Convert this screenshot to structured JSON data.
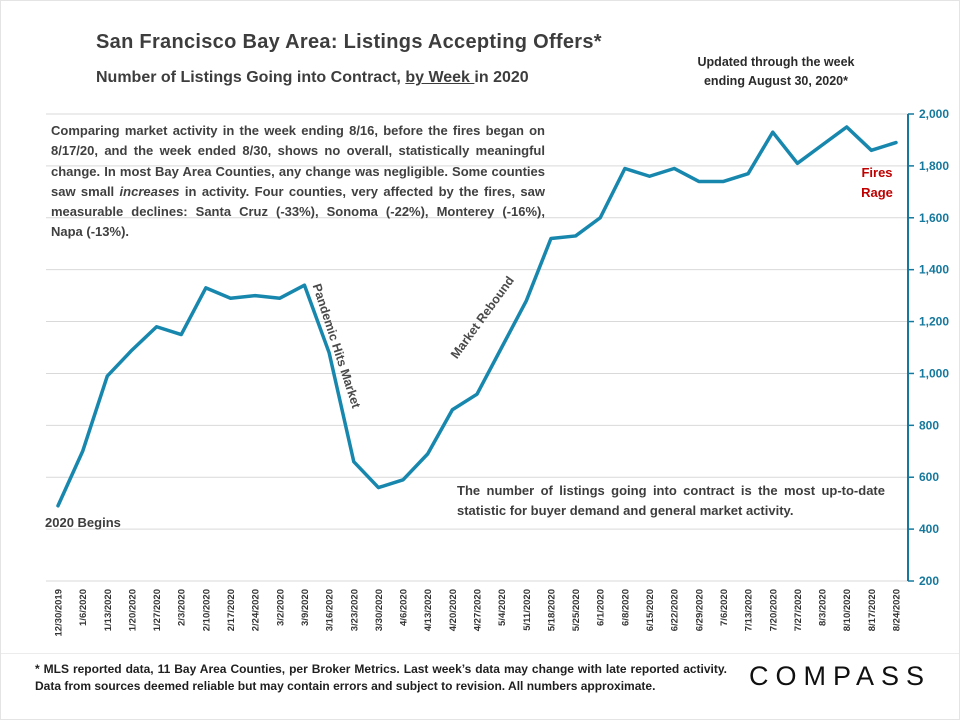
{
  "header": {
    "title": "San Francisco Bay Area: Listings Accepting Offers*",
    "subtitle_prefix": "Number of Listings Going into Contract, ",
    "subtitle_underlined": "by Week ",
    "subtitle_suffix": "in 2020",
    "updated_note_1": "Updated through the week",
    "updated_note_2": "ending August 30, 2020*"
  },
  "annotations": {
    "commentary_1": "Comparing market activity in the week ending 8/16, before the fires began on 8/17/20, and the week ended 8/30, shows no overall, statistically meaningful change. In most Bay Area Counties, any change was negligible. Some counties saw small ",
    "commentary_italic": "increases",
    "commentary_2": " in activity. Four counties, very affected by the fires, saw measurable declines: Santa Cruz (-33%), Sonoma (-22%), Monterey (-16%), Napa (-13%).",
    "pandemic": "Pandemic Hits Market",
    "rebound": "Market Rebound",
    "fires_1": "Fires",
    "fires_2": "Rage",
    "begins": "2020 Begins",
    "demand_note": "The number of listings going into contract is the most up-to-date statistic for buyer demand and general market activity."
  },
  "footer": {
    "disclaimer": "* MLS reported data, 11 Bay Area Counties, per Broker Metrics. Last week’s data may change with late reported activity. Data from sources deemed reliable but may contain errors and subject to revision. All numbers approximate.",
    "logo": "COMPASS"
  },
  "chart_data": {
    "type": "line",
    "title": "San Francisco Bay Area: Listings Accepting Offers*",
    "subtitle": "Number of Listings Going into Contract, by Week in 2020",
    "x": [
      "12/30/2019",
      "1/6/2020",
      "1/13/2020",
      "1/20/2020",
      "1/27/2020",
      "2/3/2020",
      "2/10/2020",
      "2/17/2020",
      "2/24/2020",
      "3/2/2020",
      "3/9/2020",
      "3/16/2020",
      "3/23/2020",
      "3/30/2020",
      "4/6/2020",
      "4/13/2020",
      "4/20/2020",
      "4/27/2020",
      "5/4/2020",
      "5/11/2020",
      "5/18/2020",
      "5/25/2020",
      "6/1/2020",
      "6/8/2020",
      "6/15/2020",
      "6/22/2020",
      "6/29/2020",
      "7/6/2020",
      "7/13/2020",
      "7/20/2020",
      "7/27/2020",
      "8/3/2020",
      "8/10/2020",
      "8/17/2020",
      "8/24/2020"
    ],
    "values": [
      490,
      700,
      990,
      1090,
      1180,
      1150,
      1330,
      1290,
      1300,
      1290,
      1340,
      1080,
      660,
      560,
      590,
      690,
      860,
      920,
      1100,
      1280,
      1520,
      1530,
      1600,
      1790,
      1760,
      1790,
      1740,
      1740,
      1770,
      1930,
      1810,
      1880,
      1950,
      1860,
      1890
    ],
    "ylim": [
      200,
      2000
    ],
    "ytick_step": 200,
    "grid": true,
    "legend": "none",
    "y_axis_side": "right",
    "line_color": "#1787ae",
    "axis_color": "#15789c",
    "grid_color": "#d9d9d9",
    "accent_red": "#c00000"
  }
}
